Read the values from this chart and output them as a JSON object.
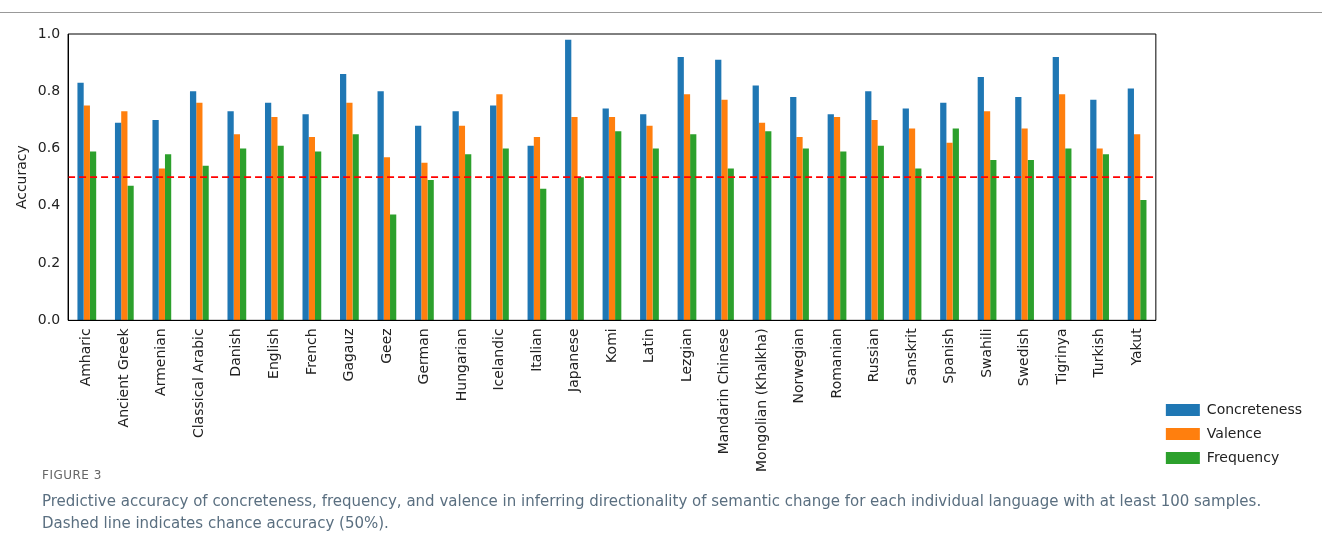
{
  "chart_data": {
    "type": "bar",
    "ylabel": "Accuracy",
    "categories": [
      "Amharic",
      "Ancient Greek",
      "Armenian",
      "Classical Arabic",
      "Danish",
      "English",
      "French",
      "Gagauz",
      "Geez",
      "German",
      "Hungarian",
      "Icelandic",
      "Italian",
      "Japanese",
      "Komi",
      "Latin",
      "Lezgian",
      "Mandarin Chinese",
      "Mongolian (Khalkha)",
      "Norwegian",
      "Romanian",
      "Russian",
      "Sanskrit",
      "Spanish",
      "Swahili",
      "Swedish",
      "Tigrinya",
      "Turkish",
      "Yakut"
    ],
    "series": [
      {
        "name": "Concreteness",
        "color": "#1f77b4",
        "values": [
          0.83,
          0.69,
          0.7,
          0.8,
          0.73,
          0.76,
          0.72,
          0.86,
          0.8,
          0.68,
          0.73,
          0.75,
          0.61,
          0.98,
          0.74,
          0.72,
          0.92,
          0.91,
          0.82,
          0.78,
          0.72,
          0.8,
          0.74,
          0.76,
          0.85,
          0.78,
          0.92,
          0.77,
          0.81
        ]
      },
      {
        "name": "Valence",
        "color": "#ff7f0e",
        "values": [
          0.75,
          0.73,
          0.53,
          0.76,
          0.65,
          0.71,
          0.64,
          0.76,
          0.57,
          0.55,
          0.68,
          0.79,
          0.64,
          0.71,
          0.71,
          0.68,
          0.79,
          0.77,
          0.69,
          0.64,
          0.71,
          0.7,
          0.67,
          0.62,
          0.73,
          0.67,
          0.79,
          0.6,
          0.65
        ]
      },
      {
        "name": "Frequency",
        "color": "#2ca02c",
        "values": [
          0.59,
          0.47,
          0.58,
          0.54,
          0.6,
          0.61,
          0.59,
          0.65,
          0.37,
          0.49,
          0.58,
          0.6,
          0.46,
          0.5,
          0.66,
          0.6,
          0.65,
          0.53,
          0.66,
          0.6,
          0.59,
          0.61,
          0.53,
          0.67,
          0.56,
          0.56,
          0.6,
          0.58,
          0.42
        ]
      }
    ],
    "ylim": [
      0,
      1
    ],
    "yticks": [
      {
        "value": 0,
        "label": "0.0"
      },
      {
        "value": 0.2,
        "label": "0.2"
      },
      {
        "value": 0.4,
        "label": "0.4"
      },
      {
        "value": 0.6,
        "label": "0.6"
      },
      {
        "value": 0.8,
        "label": "0.8"
      },
      {
        "value": 1,
        "label": "1.0"
      }
    ],
    "grid": false,
    "legend": "right",
    "ref_lines": [
      {
        "axis": "y",
        "value": 0.5,
        "color": "#ff0000",
        "line_style": "dashed"
      }
    ],
    "annotations": [
      "FIGURE 3",
      "Predictive accuracy of concreteness, frequency, and valence in inferring directionality of semantic change for each individual language with at least 100 samples. Dashed line indicates chance accuracy (50%)."
    ]
  }
}
